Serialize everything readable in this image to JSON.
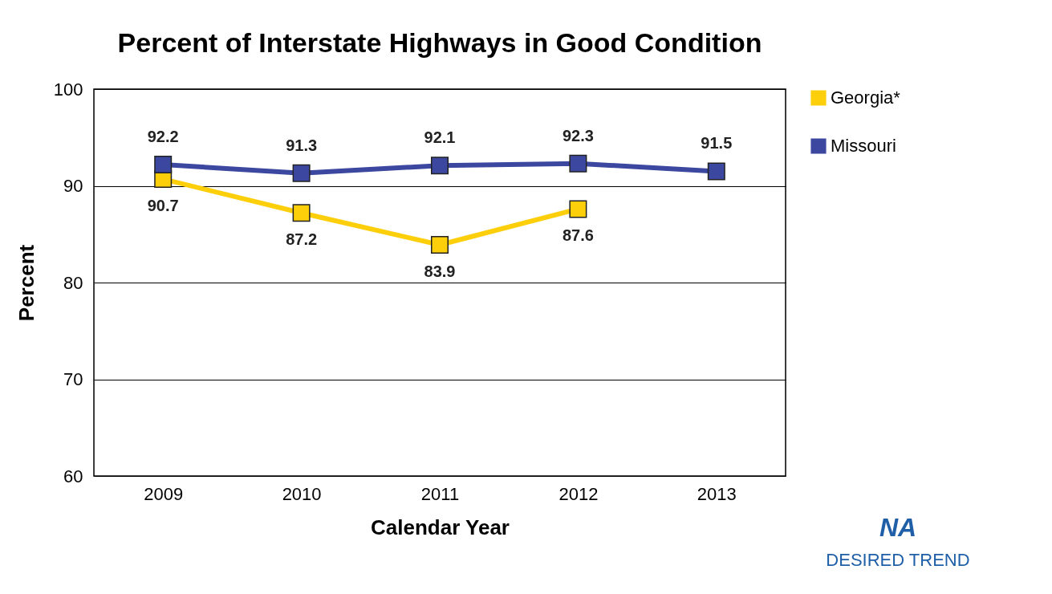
{
  "chart_data": {
    "type": "line",
    "title": "Percent of Interstate Highways in Good Condition",
    "xlabel": "Calendar Year",
    "ylabel": "Percent",
    "categories": [
      "2009",
      "2010",
      "2011",
      "2012",
      "2013"
    ],
    "series": [
      {
        "name": "Georgia*",
        "color": "#fdcf0a",
        "values": [
          90.7,
          87.2,
          83.9,
          87.6,
          null
        ]
      },
      {
        "name": "Missouri",
        "color": "#3c48a0",
        "values": [
          92.2,
          91.3,
          92.1,
          92.3,
          91.5
        ]
      }
    ],
    "ylim": [
      60,
      100
    ],
    "yticks": [
      60,
      70,
      80,
      90,
      100
    ],
    "grid": "y",
    "legend": "top right",
    "marker": "square",
    "line_style": "solid",
    "data_labels": true,
    "annotations": [
      "NA",
      "DESIRED TREND"
    ]
  }
}
